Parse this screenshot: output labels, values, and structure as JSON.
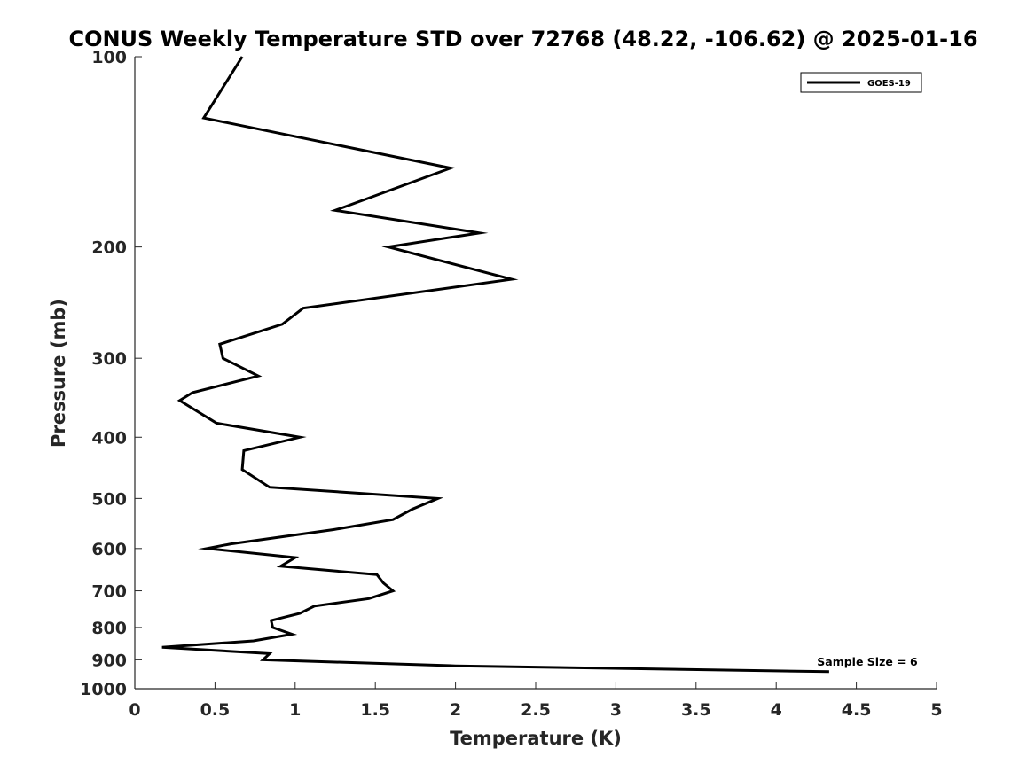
{
  "chart_data": {
    "type": "line",
    "title": "CONUS Weekly Temperature STD over 72768 (48.22, -106.62) @ 2025-01-16",
    "xlabel": "Temperature (K)",
    "ylabel": "Pressure (mb)",
    "xlim": [
      0,
      5
    ],
    "ylim": [
      1000,
      100
    ],
    "y_scale": "log",
    "y_reversed": true,
    "grid": false,
    "legend_position": "top-right",
    "xticks": [
      "0",
      "0.5",
      "1",
      "1.5",
      "2",
      "2.5",
      "3",
      "3.5",
      "4",
      "4.5",
      "5"
    ],
    "yticks": [
      "100",
      "200",
      "300",
      "400",
      "500",
      "600",
      "700",
      "800",
      "900",
      "1000"
    ],
    "series": [
      {
        "name": "GOES-19",
        "color": "#000000",
        "points": [
          [
            0.67,
            100
          ],
          [
            0.43,
            125
          ],
          [
            1.97,
            150
          ],
          [
            1.25,
            175
          ],
          [
            2.15,
            190
          ],
          [
            1.58,
            200
          ],
          [
            2.35,
            225
          ],
          [
            1.05,
            250
          ],
          [
            0.92,
            265
          ],
          [
            0.53,
            285
          ],
          [
            0.55,
            300
          ],
          [
            0.77,
            320
          ],
          [
            0.36,
            340
          ],
          [
            0.28,
            350
          ],
          [
            0.51,
            380
          ],
          [
            1.03,
            400
          ],
          [
            0.68,
            420
          ],
          [
            0.67,
            450
          ],
          [
            0.84,
            480
          ],
          [
            1.89,
            500
          ],
          [
            1.73,
            520
          ],
          [
            1.61,
            540
          ],
          [
            1.24,
            560
          ],
          [
            0.6,
            590
          ],
          [
            0.45,
            600
          ],
          [
            1.0,
            620
          ],
          [
            0.91,
            640
          ],
          [
            1.51,
            660
          ],
          [
            1.55,
            680
          ],
          [
            1.61,
            700
          ],
          [
            1.46,
            720
          ],
          [
            1.12,
            740
          ],
          [
            1.03,
            760
          ],
          [
            0.85,
            780
          ],
          [
            0.86,
            800
          ],
          [
            0.98,
            820
          ],
          [
            0.74,
            840
          ],
          [
            0.17,
            860
          ],
          [
            0.84,
            880
          ],
          [
            0.8,
            900
          ],
          [
            2.0,
            920
          ],
          [
            4.33,
            940
          ]
        ]
      }
    ],
    "annotations": [
      {
        "text": "Sample Size = 6"
      }
    ]
  }
}
